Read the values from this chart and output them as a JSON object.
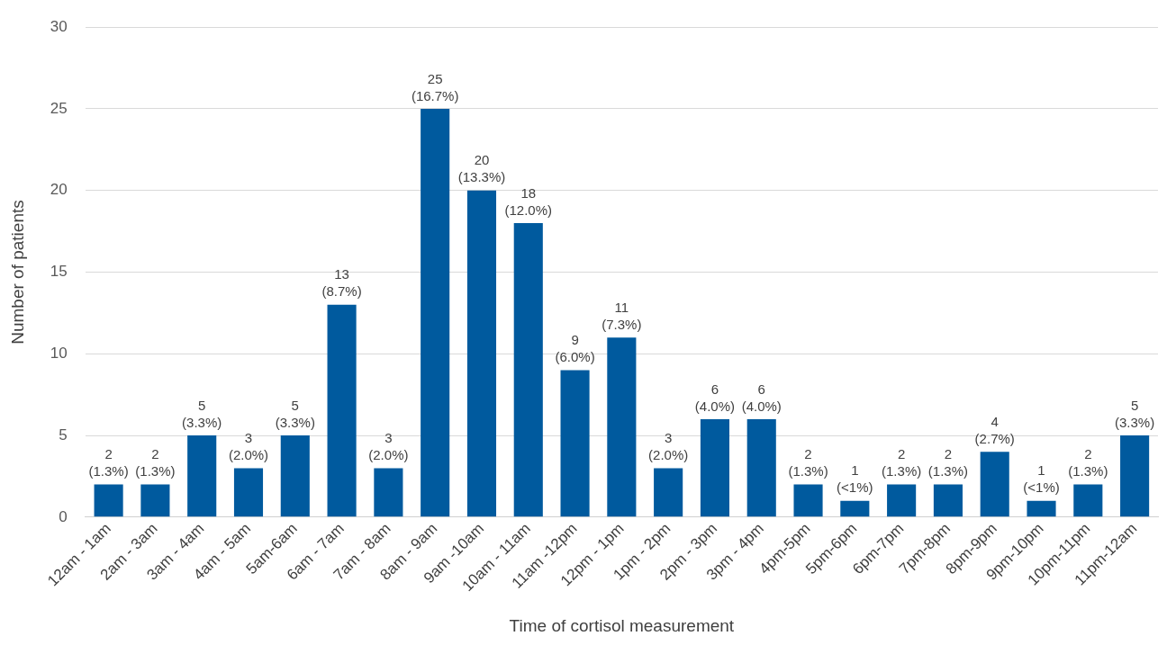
{
  "chart_data": {
    "type": "bar",
    "xlabel": "Time of cortisol measurement",
    "ylabel": "Number of patients",
    "categories": [
      "12am - 1am",
      "2am - 3am",
      "3am - 4am",
      "4am - 5am",
      "5am-6am",
      "6am - 7am",
      "7am - 8am",
      "8am - 9am",
      "9am -10am",
      "10am - 11am",
      "11am -12pm",
      "12pm - 1pm",
      "1pm - 2pm",
      "2pm - 3pm",
      "3pm - 4pm",
      "4pm-5pm",
      "5pm-6pm",
      "6pm-7pm",
      "7pm-8pm",
      "8pm-9pm",
      "9pm-10pm",
      "10pm-11pm",
      "11pm-12am"
    ],
    "values": [
      2,
      2,
      5,
      3,
      5,
      13,
      3,
      25,
      20,
      18,
      9,
      11,
      3,
      6,
      6,
      2,
      1,
      2,
      2,
      4,
      1,
      2,
      5
    ],
    "value_labels": [
      "2\n(1.3%)",
      "2\n(1.3%)",
      "5\n(3.3%)",
      "3\n(2.0%)",
      "5\n(3.3%)",
      "13\n(8.7%)",
      "3\n(2.0%)",
      "25\n(16.7%)",
      "20\n(13.3%)",
      "18\n(12.0%)",
      "9\n(6.0%)",
      "11\n(7.3%)",
      "3\n(2.0%)",
      "6\n(4.0%)",
      "6\n(4.0%)",
      "2\n(1.3%)",
      "1\n(<1%)",
      "2\n(1.3%)",
      "2\n(1.3%)",
      "4\n(2.7%)",
      "1\n(<1%)",
      "2\n(1.3%)",
      "5\n(3.3%)"
    ],
    "color": "#005a9e",
    "ylim": [
      0,
      30
    ],
    "yticks": [
      0,
      5,
      10,
      15,
      20,
      25,
      30
    ],
    "grid": "y",
    "legend": false
  }
}
